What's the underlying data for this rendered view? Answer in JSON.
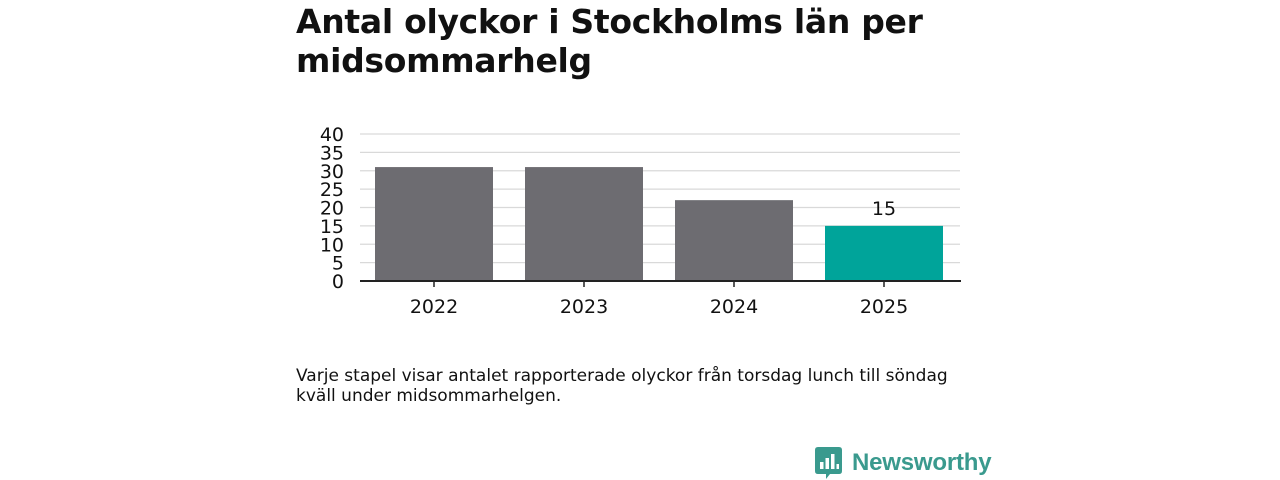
{
  "title": "Antal olyckor i Stockholms län per midsommarhelg",
  "caption": "Varje stapel visar antalet rapporterade olyckor från torsdag lunch till söndag kväll under midsommarhelgen.",
  "brand": {
    "name": "Newsworthy",
    "logo_icon": "bar-chart-speech-bubble-icon",
    "color": "#3a9a8e"
  },
  "colors": {
    "bar_default": "#6d6c71",
    "bar_highlight": "#00a49a",
    "grid": "#d9d9d9",
    "axis": "#222222",
    "text": "#111111"
  },
  "chart_data": {
    "type": "bar",
    "categories": [
      "2022",
      "2023",
      "2024",
      "2025"
    ],
    "values": [
      31,
      31,
      22,
      15
    ],
    "highlight_index": 3,
    "data_labels": [
      null,
      null,
      null,
      "15"
    ],
    "ylim": [
      0,
      40
    ],
    "y_ticks": [
      "0",
      "5",
      "10",
      "15",
      "20",
      "25",
      "30",
      "35",
      "40"
    ],
    "grid": true,
    "legend": "none"
  }
}
